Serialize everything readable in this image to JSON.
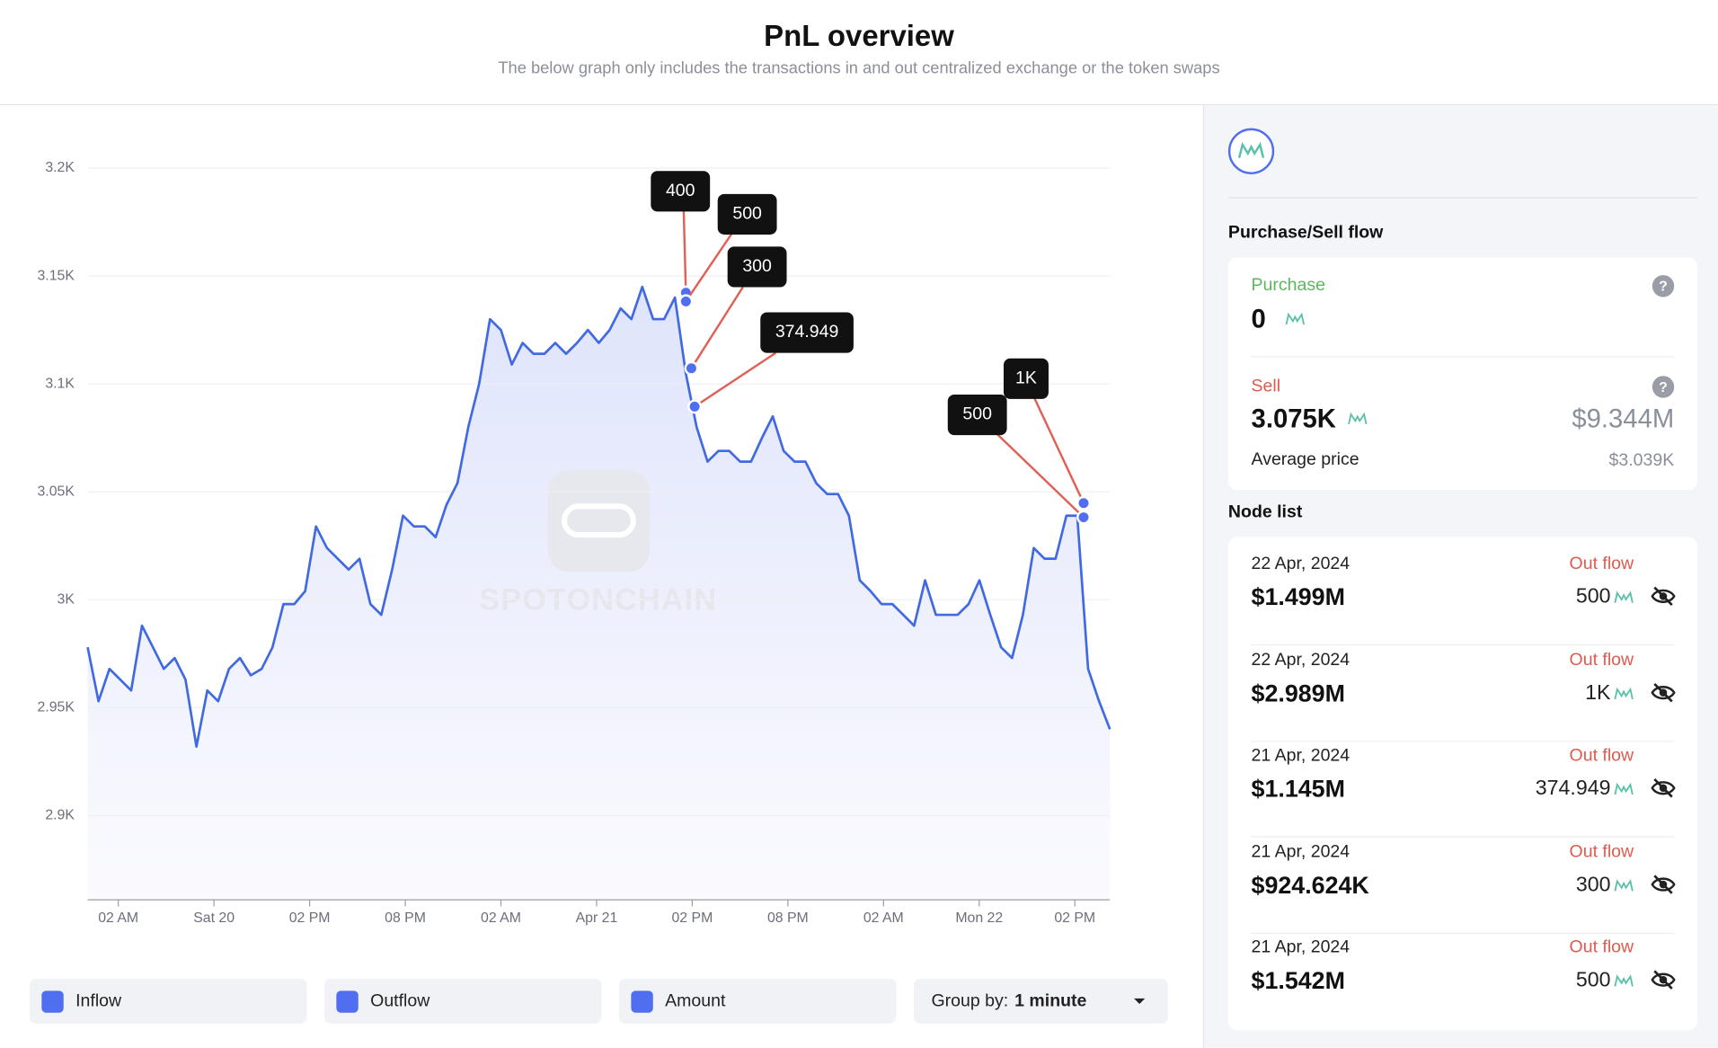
{
  "header": {
    "title": "PnL overview",
    "subtitle": "The below graph only includes the transactions in and out centralized exchange or the token swaps"
  },
  "chart_data": {
    "type": "line",
    "watermark": "SPOTONCHAIN",
    "ylim": [
      2861,
      3220
    ],
    "yticks": [
      {
        "value": 2900,
        "label": "2.9K"
      },
      {
        "value": 2950,
        "label": "2.95K"
      },
      {
        "value": 3000,
        "label": "3K"
      },
      {
        "value": 3050,
        "label": "3.05K"
      },
      {
        "value": 3100,
        "label": "3.1K"
      },
      {
        "value": 3150,
        "label": "3.15K"
      },
      {
        "value": 3200,
        "label": "3.2K"
      }
    ],
    "xticks": [
      "02 AM",
      "Sat 20",
      "02 PM",
      "08 PM",
      "02 AM",
      "Apr 21",
      "02 PM",
      "08 PM",
      "02 AM",
      "Mon 22",
      "02 PM"
    ],
    "grid": true,
    "series": [
      {
        "color": "#4169e1",
        "values": [
          2978,
          2953,
          2968,
          2963,
          2958,
          2988,
          2978,
          2968,
          2973,
          2963,
          2932,
          2958,
          2953,
          2968,
          2973,
          2965,
          2968,
          2978,
          2998,
          2998,
          3004,
          3034,
          3024,
          3019,
          3014,
          3019,
          2998,
          2993,
          3014,
          3039,
          3034,
          3034,
          3029,
          3044,
          3054,
          3080,
          3100,
          3130,
          3125,
          3109,
          3119,
          3114,
          3114,
          3119,
          3114,
          3119,
          3125,
          3119,
          3125,
          3135,
          3130,
          3145,
          3130,
          3130,
          3140,
          3105,
          3080,
          3064,
          3069,
          3069,
          3064,
          3064,
          3075,
          3085,
          3069,
          3064,
          3064,
          3054,
          3049,
          3049,
          3039,
          3009,
          3004,
          2998,
          2998,
          2993,
          2988,
          3009,
          2993,
          2993,
          2993,
          2998,
          3009,
          2993,
          2978,
          2973,
          2993,
          3024,
          3019,
          3019,
          3039,
          3039,
          2968,
          2953,
          2940
        ]
      }
    ],
    "annotations": [
      {
        "label": "400"
      },
      {
        "label": "500"
      },
      {
        "label": "300"
      },
      {
        "label": "374.949"
      },
      {
        "label": "500"
      },
      {
        "label": "1K"
      }
    ]
  },
  "controls": {
    "options": [
      "Inflow",
      "Outflow",
      "Amount"
    ],
    "group_by_label": "Group by:",
    "group_by_value": "1 minute"
  },
  "panel": {
    "section_title": "Purchase/Sell flow",
    "purchase_label": "Purchase",
    "purchase_value": "0",
    "sell_label": "Sell",
    "sell_value": "3.075K",
    "sell_usd": "$9.344M",
    "avg_label": "Average price",
    "avg_value": "$3.039K",
    "node_list_title": "Node list",
    "nodes": [
      {
        "date": "22 Apr, 2024",
        "usd": "$1.499M",
        "flow": "Out flow",
        "amount": "500"
      },
      {
        "date": "22 Apr, 2024",
        "usd": "$2.989M",
        "flow": "Out flow",
        "amount": "1K"
      },
      {
        "date": "21 Apr, 2024",
        "usd": "$1.145M",
        "flow": "Out flow",
        "amount": "374.949"
      },
      {
        "date": "21 Apr, 2024",
        "usd": "$924.624K",
        "flow": "Out flow",
        "amount": "300"
      },
      {
        "date": "21 Apr, 2024",
        "usd": "$1.542M",
        "flow": "Out flow",
        "amount": "500"
      }
    ]
  }
}
